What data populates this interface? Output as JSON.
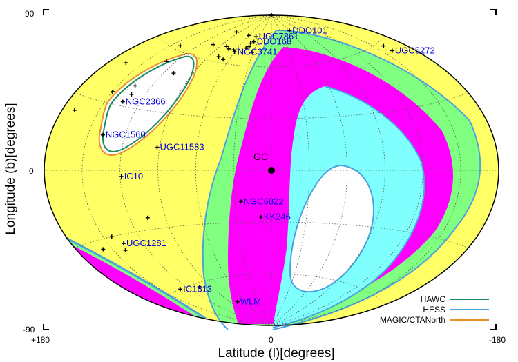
{
  "chart_data": {
    "type": "scatter",
    "projection": "aitoff",
    "title": "",
    "xlabel": "Latitude (l)[degrees]",
    "ylabel": "Longitude (b)[degrees]",
    "xlim": [
      180,
      -180
    ],
    "ylim": [
      -90,
      90
    ],
    "x_ticks": [
      "+180",
      "0",
      "-180"
    ],
    "y_ticks": [
      "90",
      "0",
      "-90"
    ],
    "grid": true,
    "legend_position": "bottom-right",
    "background_color": "#ffff66",
    "region_colors": {
      "outer": "#ffff66",
      "green": "#80ff80",
      "magenta": "#ff00ff",
      "cyan": "#80ffff",
      "white": "#ffffff"
    },
    "galactic_center": {
      "label": "GC",
      "l": 0,
      "b": 0
    },
    "galaxies": [
      {
        "name": "UGC7861",
        "l": 40,
        "b": 77
      },
      {
        "name": "DDO168",
        "l": 38,
        "b": 74
      },
      {
        "name": "NGC3741",
        "l": 60,
        "b": 67
      },
      {
        "name": "NGC2366",
        "l": 135,
        "b": 32
      },
      {
        "name": "NGC1560",
        "l": 138,
        "b": 16
      },
      {
        "name": "UGC11583",
        "l": 92,
        "b": 12
      },
      {
        "name": "IC10",
        "l": 119,
        "b": -3
      },
      {
        "name": "NGC6822",
        "l": 25,
        "b": -18
      },
      {
        "name": "KK246",
        "l": 9,
        "b": -27
      },
      {
        "name": "UGC1281",
        "l": 137,
        "b": -34
      },
      {
        "name": "IC1613",
        "l": 130,
        "b": -60
      },
      {
        "name": "WLM",
        "l": 76,
        "b": -74
      },
      {
        "name": "DDO101",
        "l": -60,
        "b": 80
      },
      {
        "name": "UGC5272",
        "l": -160,
        "b": 55
      }
    ],
    "extra_markers": [
      {
        "l": 97,
        "b": 77
      },
      {
        "l": 60,
        "b": 77
      },
      {
        "l": 43,
        "b": 73
      },
      {
        "l": 42,
        "b": 71
      },
      {
        "l": 46,
        "b": 70
      },
      {
        "l": 64,
        "b": 68
      },
      {
        "l": 73,
        "b": 68
      },
      {
        "l": 80,
        "b": 69
      },
      {
        "l": 103,
        "b": 68
      },
      {
        "l": 32,
        "b": 68
      },
      {
        "l": 77,
        "b": 63
      },
      {
        "l": 68,
        "b": 62
      },
      {
        "l": 140,
        "b": 62
      },
      {
        "l": 130,
        "b": 54
      },
      {
        "l": 110,
        "b": 50
      },
      {
        "l": 165,
        "b": 47
      },
      {
        "l": 132,
        "b": 36
      },
      {
        "l": 135,
        "b": 40
      },
      {
        "l": 150,
        "b": 35
      },
      {
        "l": 170,
        "b": 24
      },
      {
        "l": 105,
        "b": -24
      },
      {
        "l": 143,
        "b": -30
      },
      {
        "l": 158,
        "b": -34
      },
      {
        "l": 140,
        "b": -37
      },
      {
        "l": 105,
        "b": -62
      },
      {
        "l": -2,
        "b": 90
      },
      {
        "l": -35,
        "b": 90
      },
      {
        "l": -160,
        "b": 58
      }
    ],
    "series": [
      {
        "name": "HAWC",
        "color": "#1b8a5a"
      },
      {
        "name": "HESS",
        "color": "#4aa3df"
      },
      {
        "name": "MAGIC/CTANorth",
        "color": "#e8902a"
      }
    ]
  }
}
